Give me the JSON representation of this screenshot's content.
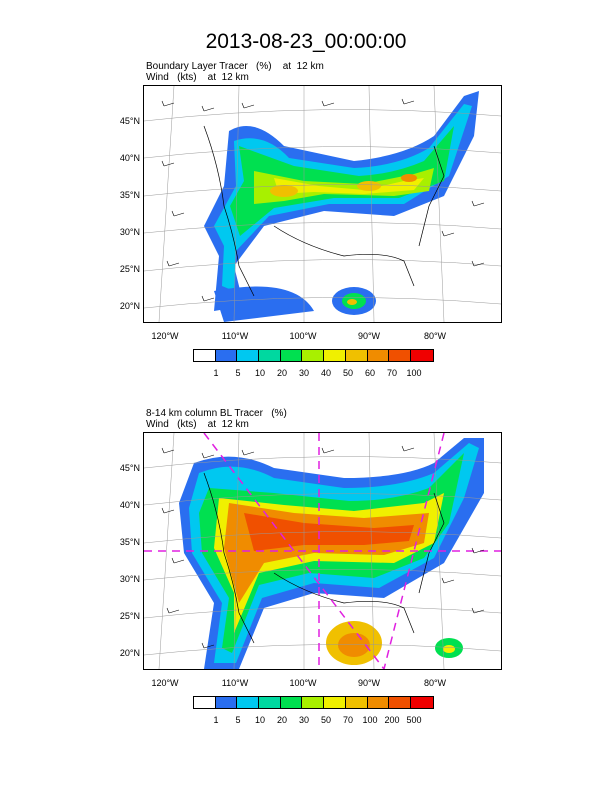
{
  "title": "2013-08-23_00:00:00",
  "panel1": {
    "subtitle_line1": "Boundary Layer Tracer   (%)    at  12 km",
    "subtitle_line2": "Wind   (kts)    at  12 km",
    "colorbar_labels": [
      "1",
      "5",
      "10",
      "20",
      "30",
      "40",
      "50",
      "60",
      "70",
      "100"
    ]
  },
  "panel2": {
    "subtitle_line1": "8-14 km column BL Tracer   (%)",
    "subtitle_line2": "Wind   (kts)    at  12 km",
    "colorbar_labels": [
      "1",
      "5",
      "10",
      "20",
      "30",
      "50",
      "70",
      "100",
      "200",
      "500"
    ]
  },
  "lat_labels": [
    "45°N",
    "40°N",
    "35°N",
    "30°N",
    "25°N",
    "20°N"
  ],
  "lon_labels": [
    "120°W",
    "110°W",
    "100°W",
    "90°W",
    "80°W"
  ],
  "colors": [
    "#ffffff",
    "#2a6ef0",
    "#00c8f0",
    "#00d8a0",
    "#00e050",
    "#a8f000",
    "#f0f000",
    "#f0c000",
    "#f08c00",
    "#f05000",
    "#f00000"
  ]
}
